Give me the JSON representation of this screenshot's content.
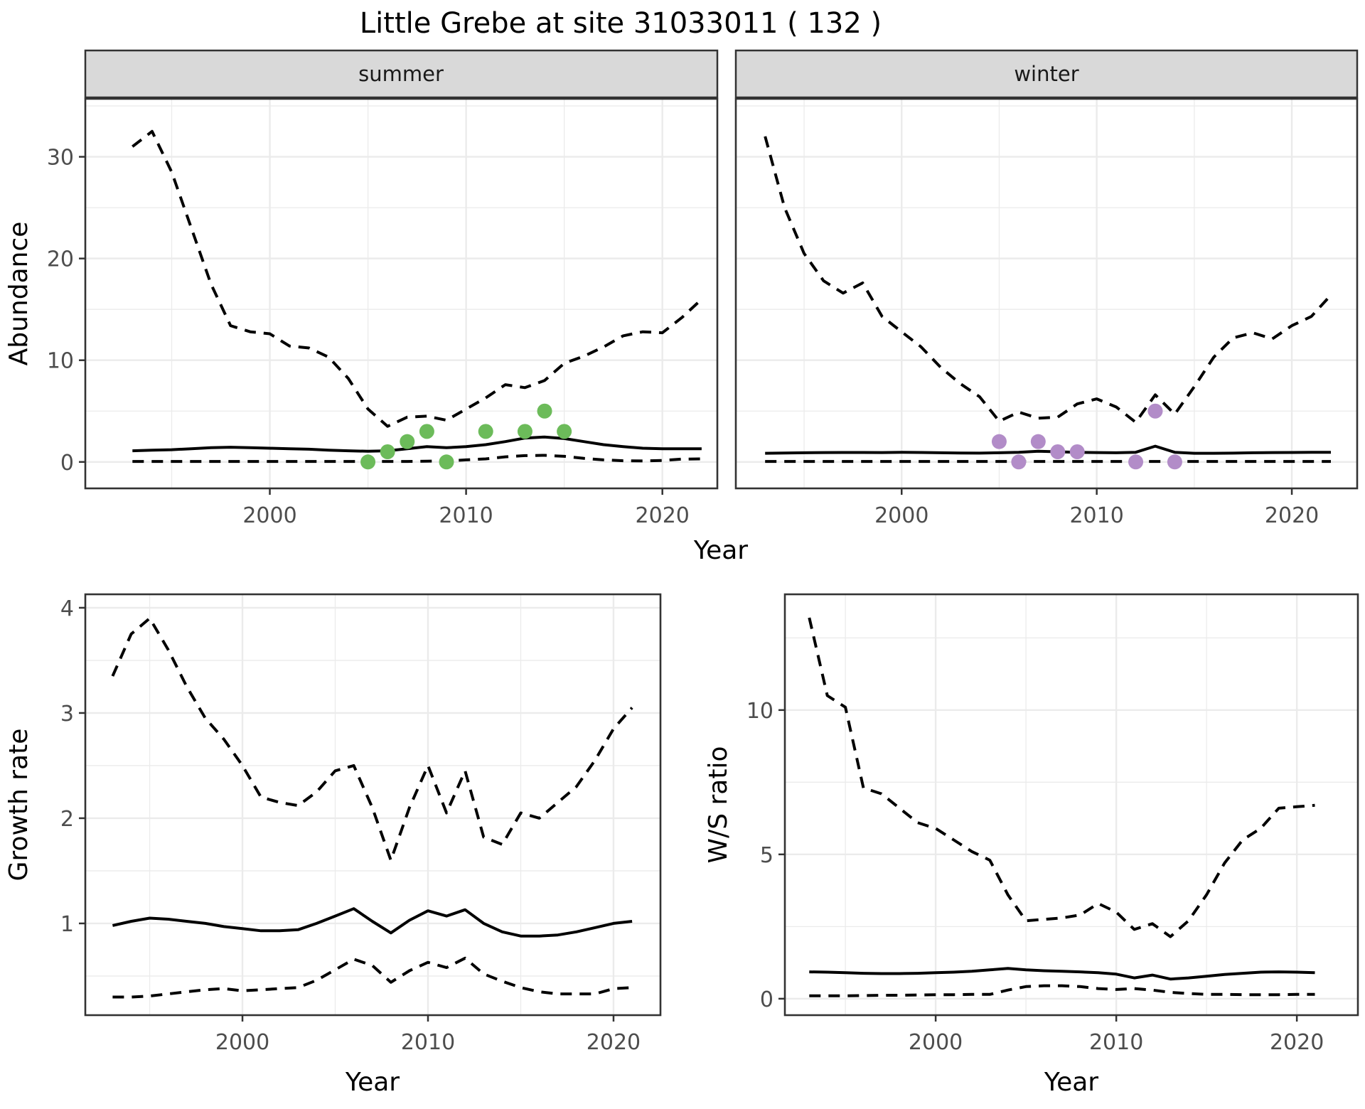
{
  "title": "Little Grebe at site 31033011 ( 132 )",
  "facets": [
    {
      "label": "summer"
    },
    {
      "label": "winter"
    }
  ],
  "colors": {
    "summer_points": "#6cbb5a",
    "winter_points": "#b28cc8",
    "line": "#000000",
    "grid": "#ebebeb",
    "strip_bg": "#d9d9d9",
    "panel_border": "#333333",
    "tick_text": "#4d4d4d"
  },
  "chart_data": [
    {
      "id": "abundance-summer",
      "type": "line",
      "facet": "summer",
      "xlabel": "Year",
      "ylabel": "Abundance",
      "xlim": [
        1990.6,
        2022.8
      ],
      "ylim": [
        -2.6,
        35.7
      ],
      "xticks": [
        2000,
        2010,
        2020
      ],
      "xminor": [
        1995,
        2005,
        2015
      ],
      "yticks": [
        0,
        10,
        20,
        30
      ],
      "yminor": [
        5,
        15,
        25,
        35
      ],
      "grid": true,
      "legend": "none",
      "x": [
        1993,
        1994,
        1995,
        1996,
        1997,
        1998,
        1999,
        2000,
        2001,
        2002,
        2003,
        2004,
        2005,
        2006,
        2007,
        2008,
        2009,
        2010,
        2011,
        2012,
        2013,
        2014,
        2015,
        2016,
        2017,
        2018,
        2019,
        2020,
        2021,
        2022
      ],
      "series": [
        {
          "name": "upper_95ci",
          "style": "dashed",
          "values": [
            31,
            32.5,
            28.5,
            23,
            17.5,
            13.4,
            12.8,
            12.6,
            11.4,
            11.2,
            10.3,
            8.2,
            5.2,
            3.5,
            4.4,
            4.5,
            4.1,
            5.2,
            6.3,
            7.6,
            7.3,
            8,
            9.7,
            10.4,
            11.3,
            12.4,
            12.8,
            12.7,
            14.2,
            16
          ]
        },
        {
          "name": "estimate",
          "style": "solid",
          "values": [
            1.1,
            1.15,
            1.2,
            1.3,
            1.4,
            1.45,
            1.4,
            1.35,
            1.3,
            1.25,
            1.15,
            1.1,
            1.05,
            1.1,
            1.3,
            1.5,
            1.4,
            1.5,
            1.7,
            2,
            2.35,
            2.45,
            2.3,
            2,
            1.7,
            1.5,
            1.35,
            1.3,
            1.3,
            1.3
          ]
        },
        {
          "name": "lower_95ci",
          "style": "dashed",
          "values": [
            0.05,
            0.05,
            0.05,
            0.05,
            0.05,
            0.05,
            0.05,
            0.05,
            0.05,
            0.05,
            0.05,
            0.05,
            0.05,
            0.05,
            0.05,
            0.08,
            0.1,
            0.2,
            0.3,
            0.5,
            0.62,
            0.65,
            0.55,
            0.35,
            0.2,
            0.12,
            0.1,
            0.15,
            0.28,
            0.3
          ]
        }
      ],
      "points": {
        "name": "observed-count",
        "color_key": "summer_points",
        "data": [
          [
            2005,
            0
          ],
          [
            2006,
            1
          ],
          [
            2007,
            2
          ],
          [
            2008,
            3
          ],
          [
            2009,
            0
          ],
          [
            2011,
            3
          ],
          [
            2013,
            3
          ],
          [
            2014,
            5
          ],
          [
            2015,
            3
          ]
        ]
      }
    },
    {
      "id": "abundance-winter",
      "type": "line",
      "facet": "winter",
      "xlabel": "Year",
      "ylabel": "Abundance",
      "xlim": [
        1991.5,
        2023.35
      ],
      "ylim": [
        -2.6,
        35.7
      ],
      "xticks": [
        2000,
        2010,
        2020
      ],
      "xminor": [
        1995,
        2005,
        2015
      ],
      "yticks": [
        0,
        10,
        20,
        30
      ],
      "yminor": [
        5,
        15,
        25,
        35
      ],
      "grid": true,
      "legend": "none",
      "x": [
        1993,
        1994,
        1995,
        1996,
        1997,
        1998,
        1999,
        2000,
        2001,
        2002,
        2003,
        2004,
        2005,
        2006,
        2007,
        2008,
        2009,
        2010,
        2011,
        2012,
        2013,
        2014,
        2015,
        2016,
        2017,
        2018,
        2019,
        2020,
        2021,
        2022
      ],
      "series": [
        {
          "name": "upper_95ci",
          "style": "dashed",
          "values": [
            32,
            25,
            20.5,
            17.8,
            16.6,
            17.6,
            14.3,
            12.8,
            11.3,
            9.3,
            7.7,
            6.4,
            4,
            4.9,
            4.3,
            4.4,
            5.7,
            6.2,
            5.4,
            3.9,
            6.6,
            4.7,
            7.4,
            10.3,
            12.2,
            12.7,
            12.1,
            13.4,
            14.3,
            16.4
          ]
        },
        {
          "name": "estimate",
          "style": "solid",
          "values": [
            0.85,
            0.88,
            0.9,
            0.92,
            0.93,
            0.93,
            0.92,
            0.95,
            0.93,
            0.9,
            0.88,
            0.87,
            0.9,
            0.95,
            1.05,
            1,
            0.95,
            0.92,
            0.9,
            0.95,
            1.55,
            0.95,
            0.85,
            0.85,
            0.87,
            0.9,
            0.92,
            0.93,
            0.95,
            0.95
          ]
        },
        {
          "name": "lower_95ci",
          "style": "dashed",
          "values": [
            0.05,
            0.05,
            0.05,
            0.05,
            0.05,
            0.05,
            0.05,
            0.05,
            0.05,
            0.05,
            0.05,
            0.05,
            0.05,
            0.05,
            0.05,
            0.05,
            0.05,
            0.05,
            0.05,
            0.05,
            0.05,
            0.05,
            0.05,
            0.05,
            0.05,
            0.05,
            0.05,
            0.05,
            0.05,
            0.05
          ]
        }
      ],
      "points": {
        "name": "observed-count",
        "color_key": "winter_points",
        "data": [
          [
            2005,
            2
          ],
          [
            2006,
            0
          ],
          [
            2007,
            2
          ],
          [
            2008,
            1
          ],
          [
            2009,
            1
          ],
          [
            2012,
            0
          ],
          [
            2013,
            5
          ],
          [
            2014,
            0
          ]
        ]
      }
    },
    {
      "id": "growth-rate",
      "type": "line",
      "facet": null,
      "xlabel": "Year",
      "ylabel": "Growth rate",
      "xlim": [
        1991.53,
        2022.53
      ],
      "ylim": [
        0.128,
        4.128
      ],
      "xticks": [
        2000,
        2010,
        2020
      ],
      "xminor": [
        1995,
        2005,
        2015
      ],
      "yticks": [
        1,
        2,
        3,
        4
      ],
      "yminor": [
        0.5,
        1.5,
        2.5,
        3.5
      ],
      "grid": true,
      "legend": "none",
      "x": [
        1993,
        1994,
        1995,
        1996,
        1997,
        1998,
        1999,
        2000,
        2001,
        2002,
        2003,
        2004,
        2005,
        2006,
        2007,
        2008,
        2009,
        2010,
        2011,
        2012,
        2013,
        2014,
        2015,
        2016,
        2017,
        2018,
        2019,
        2020,
        2021
      ],
      "series": [
        {
          "name": "upper_95ci",
          "style": "dashed",
          "values": [
            3.35,
            3.75,
            3.9,
            3.6,
            3.25,
            2.95,
            2.75,
            2.5,
            2.2,
            2.15,
            2.12,
            2.25,
            2.45,
            2.5,
            2.1,
            1.6,
            2.1,
            2.5,
            2.05,
            2.45,
            1.82,
            1.75,
            2.05,
            2,
            2.15,
            2.3,
            2.55,
            2.85,
            3.05
          ]
        },
        {
          "name": "estimate",
          "style": "solid",
          "values": [
            0.98,
            1.02,
            1.05,
            1.04,
            1.02,
            1,
            0.97,
            0.95,
            0.93,
            0.93,
            0.94,
            1,
            1.07,
            1.14,
            1.02,
            0.91,
            1.03,
            1.12,
            1.07,
            1.13,
            1,
            0.92,
            0.88,
            0.88,
            0.89,
            0.92,
            0.96,
            1,
            1.02
          ]
        },
        {
          "name": "lower_95ci",
          "style": "dashed",
          "values": [
            0.3,
            0.3,
            0.31,
            0.33,
            0.35,
            0.37,
            0.38,
            0.36,
            0.37,
            0.38,
            0.39,
            0.46,
            0.56,
            0.66,
            0.6,
            0.44,
            0.55,
            0.63,
            0.58,
            0.67,
            0.52,
            0.45,
            0.39,
            0.35,
            0.33,
            0.33,
            0.33,
            0.38,
            0.39
          ]
        }
      ],
      "points": null
    },
    {
      "id": "ws-ratio",
      "type": "line",
      "facet": null,
      "xlabel": "Year",
      "ylabel": "W/S ratio",
      "xlim": [
        1991.65,
        2023.38
      ],
      "ylim": [
        -0.57,
        14.01
      ],
      "xticks": [
        2000,
        2010,
        2020
      ],
      "xminor": [
        1995,
        2005,
        2015
      ],
      "yticks": [
        0,
        5,
        10
      ],
      "yminor": [
        2.5,
        7.5,
        12.5
      ],
      "grid": true,
      "legend": "none",
      "x": [
        1993,
        1994,
        1995,
        1996,
        1997,
        1998,
        1999,
        2000,
        2001,
        2002,
        2003,
        2004,
        2005,
        2006,
        2007,
        2008,
        2009,
        2010,
        2011,
        2012,
        2013,
        2014,
        2015,
        2016,
        2017,
        2018,
        2019,
        2020,
        2021
      ],
      "series": [
        {
          "name": "upper_95ci",
          "style": "dashed",
          "values": [
            13.2,
            10.5,
            10.1,
            7.3,
            7.1,
            6.6,
            6.1,
            5.9,
            5.5,
            5.1,
            4.8,
            3.6,
            2.7,
            2.75,
            2.8,
            2.9,
            3.3,
            3,
            2.4,
            2.6,
            2.15,
            2.7,
            3.6,
            4.7,
            5.5,
            5.9,
            6.6,
            6.65,
            6.7
          ]
        },
        {
          "name": "estimate",
          "style": "solid",
          "values": [
            0.93,
            0.92,
            0.9,
            0.88,
            0.87,
            0.87,
            0.88,
            0.9,
            0.92,
            0.95,
            1,
            1.05,
            1,
            0.97,
            0.95,
            0.93,
            0.9,
            0.85,
            0.72,
            0.82,
            0.68,
            0.72,
            0.78,
            0.84,
            0.88,
            0.92,
            0.93,
            0.92,
            0.9
          ]
        },
        {
          "name": "lower_95ci",
          "style": "dashed",
          "values": [
            0.1,
            0.1,
            0.1,
            0.11,
            0.12,
            0.12,
            0.13,
            0.14,
            0.14,
            0.15,
            0.15,
            0.3,
            0.42,
            0.45,
            0.45,
            0.42,
            0.35,
            0.32,
            0.35,
            0.3,
            0.22,
            0.18,
            0.15,
            0.15,
            0.14,
            0.14,
            0.14,
            0.15,
            0.15
          ]
        }
      ],
      "points": null
    }
  ]
}
